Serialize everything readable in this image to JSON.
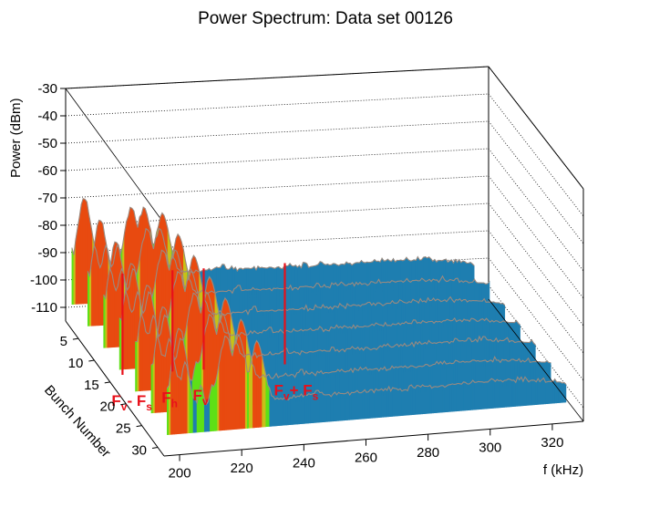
{
  "chart_data": {
    "type": "surface",
    "title": "Power Spectrum: Data set 00126",
    "xlabel": "f (kHz)",
    "ylabel": "Bunch Number",
    "zlabel": "Power (dBm)",
    "xlim": [
      195,
      330
    ],
    "ylim": [
      1,
      32
    ],
    "zlim": [
      -115,
      -30
    ],
    "x_ticks": [
      200,
      220,
      240,
      260,
      280,
      300,
      320
    ],
    "y_ticks": [
      5,
      10,
      15,
      20,
      25,
      30
    ],
    "z_ticks": [
      -30,
      -40,
      -50,
      -60,
      -70,
      -80,
      -90,
      -100,
      -110
    ],
    "grid": true,
    "noise_floor_dbm": -100,
    "bunches": [
      1,
      6,
      11,
      16,
      21,
      26,
      31
    ],
    "peaks": [
      {
        "f_khz": 201,
        "power_dbm": -70
      },
      {
        "f_khz": 216,
        "power_dbm": -75
      },
      {
        "f_khz": 220,
        "power_dbm": -75
      },
      {
        "f_khz": 226,
        "power_dbm": -78
      },
      {
        "f_khz": 245,
        "power_dbm": -98
      }
    ],
    "annotations": [
      {
        "main": "F",
        "sub": "v",
        "text2": "- F",
        "sub2": "s",
        "f_khz": 200
      },
      {
        "main": "F",
        "sub": "h",
        "text2": "",
        "sub2": "",
        "f_khz": 216
      },
      {
        "main": "F",
        "sub": "v",
        "text2": "",
        "sub2": "",
        "f_khz": 226
      },
      {
        "main": "F",
        "sub": "v",
        "text2": "+ F",
        "sub2": "s",
        "f_khz": 252
      }
    ]
  }
}
